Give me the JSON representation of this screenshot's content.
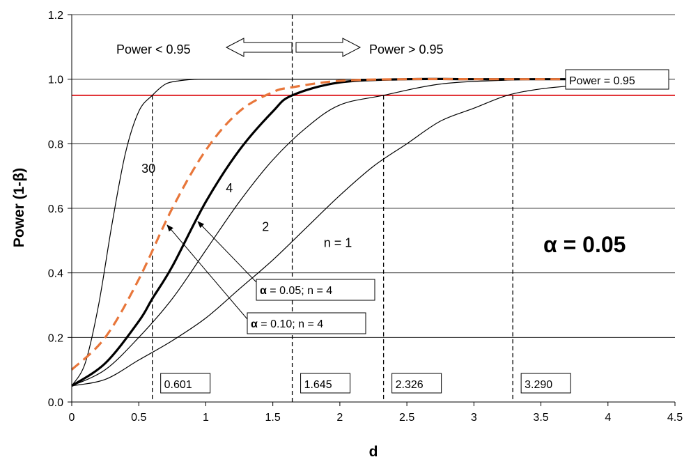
{
  "chart_data": {
    "type": "line",
    "xlabel": "d",
    "ylabel": "Power (1-β)",
    "xlim": [
      0,
      4.5
    ],
    "ylim": [
      0,
      1.2
    ],
    "x_ticks": [
      "0",
      "0.5",
      "1",
      "1.5",
      "2",
      "2.5",
      "3",
      "3.5",
      "4",
      "4.5"
    ],
    "y_ticks": [
      "0.0",
      "0.2",
      "0.4",
      "0.6",
      "0.8",
      "1.0",
      "1.2"
    ],
    "grid": "horizontal",
    "reference_line": {
      "y": 0.95,
      "color": "#e0262a",
      "label": "Power = 0.95"
    },
    "series": [
      {
        "name": "n = 1",
        "alpha": 0.05,
        "n": 1,
        "style": "thin-solid",
        "color": "#000000",
        "x": [
          0,
          0.25,
          0.5,
          0.75,
          1.0,
          1.25,
          1.5,
          1.75,
          2.0,
          2.25,
          2.5,
          2.75,
          3.0,
          3.25,
          3.5,
          3.75
        ],
        "y": [
          0.05,
          0.07,
          0.13,
          0.19,
          0.26,
          0.35,
          0.44,
          0.54,
          0.64,
          0.73,
          0.8,
          0.87,
          0.91,
          0.95,
          0.97,
          0.98
        ]
      },
      {
        "name": "2",
        "alpha": 0.05,
        "n": 2,
        "style": "thin-solid",
        "color": "#000000",
        "x": [
          0,
          0.25,
          0.5,
          0.75,
          1.0,
          1.25,
          1.5,
          1.75,
          2.0,
          2.326,
          2.75,
          3.25,
          3.75
        ],
        "y": [
          0.05,
          0.1,
          0.2,
          0.32,
          0.47,
          0.62,
          0.75,
          0.85,
          0.92,
          0.95,
          0.985,
          0.997,
          1.0
        ]
      },
      {
        "name": "4",
        "alpha": 0.05,
        "n": 4,
        "style": "thick-solid",
        "color": "#000000",
        "x": [
          0,
          0.25,
          0.5,
          0.601,
          0.75,
          1.0,
          1.25,
          1.5,
          1.645,
          2.0,
          2.5,
          3.0,
          3.5,
          3.7
        ],
        "y": [
          0.05,
          0.12,
          0.25,
          0.32,
          0.42,
          0.62,
          0.78,
          0.9,
          0.95,
          0.99,
          1.0,
          1.0,
          1.0,
          1.0
        ]
      },
      {
        "name": "30",
        "alpha": 0.05,
        "n": 30,
        "style": "thin-solid",
        "color": "#000000",
        "x": [
          0,
          0.1,
          0.2,
          0.3,
          0.4,
          0.5,
          0.601,
          0.7,
          0.8,
          0.9,
          1.0,
          1.5,
          2.0,
          2.5,
          3.0
        ],
        "y": [
          0.05,
          0.12,
          0.3,
          0.55,
          0.77,
          0.9,
          0.95,
          0.985,
          0.995,
          0.999,
          1.0,
          1.0,
          1.0,
          1.0,
          1.0
        ]
      },
      {
        "name": "α = 0.10; n = 4",
        "alpha": 0.1,
        "n": 4,
        "style": "dashed",
        "color": "#e8763a",
        "x": [
          0,
          0.25,
          0.5,
          0.75,
          1.0,
          1.25,
          1.5,
          1.645,
          2.0,
          2.5,
          3.0,
          3.5,
          3.7
        ],
        "y": [
          0.1,
          0.2,
          0.38,
          0.6,
          0.78,
          0.9,
          0.96,
          0.975,
          0.995,
          1.0,
          1.0,
          1.0,
          1.0
        ]
      }
    ],
    "critical_d": [
      {
        "label": "0.601",
        "x": 0.601
      },
      {
        "label": "1.645",
        "x": 1.645
      },
      {
        "label": "2.326",
        "x": 2.326
      },
      {
        "label": "3.290",
        "x": 3.29
      }
    ],
    "annotations": {
      "power_low": "Power < 0.95",
      "power_high": "Power > 0.95",
      "curve_labels": [
        {
          "text": "30",
          "x": 0.52,
          "y": 0.71
        },
        {
          "text": "4",
          "x": 1.15,
          "y": 0.65
        },
        {
          "text": "2",
          "x": 1.42,
          "y": 0.53
        },
        {
          "text": "n = 1",
          "x": 1.88,
          "y": 0.48
        }
      ],
      "callout_005_sym": "α",
      "callout_005_text": " = 0.05; n = 4",
      "callout_010_sym": "α",
      "callout_010_text": " = 0.10; n = 4",
      "alpha_big": "α = 0.05",
      "power_eq": "Power = 0.95"
    }
  }
}
